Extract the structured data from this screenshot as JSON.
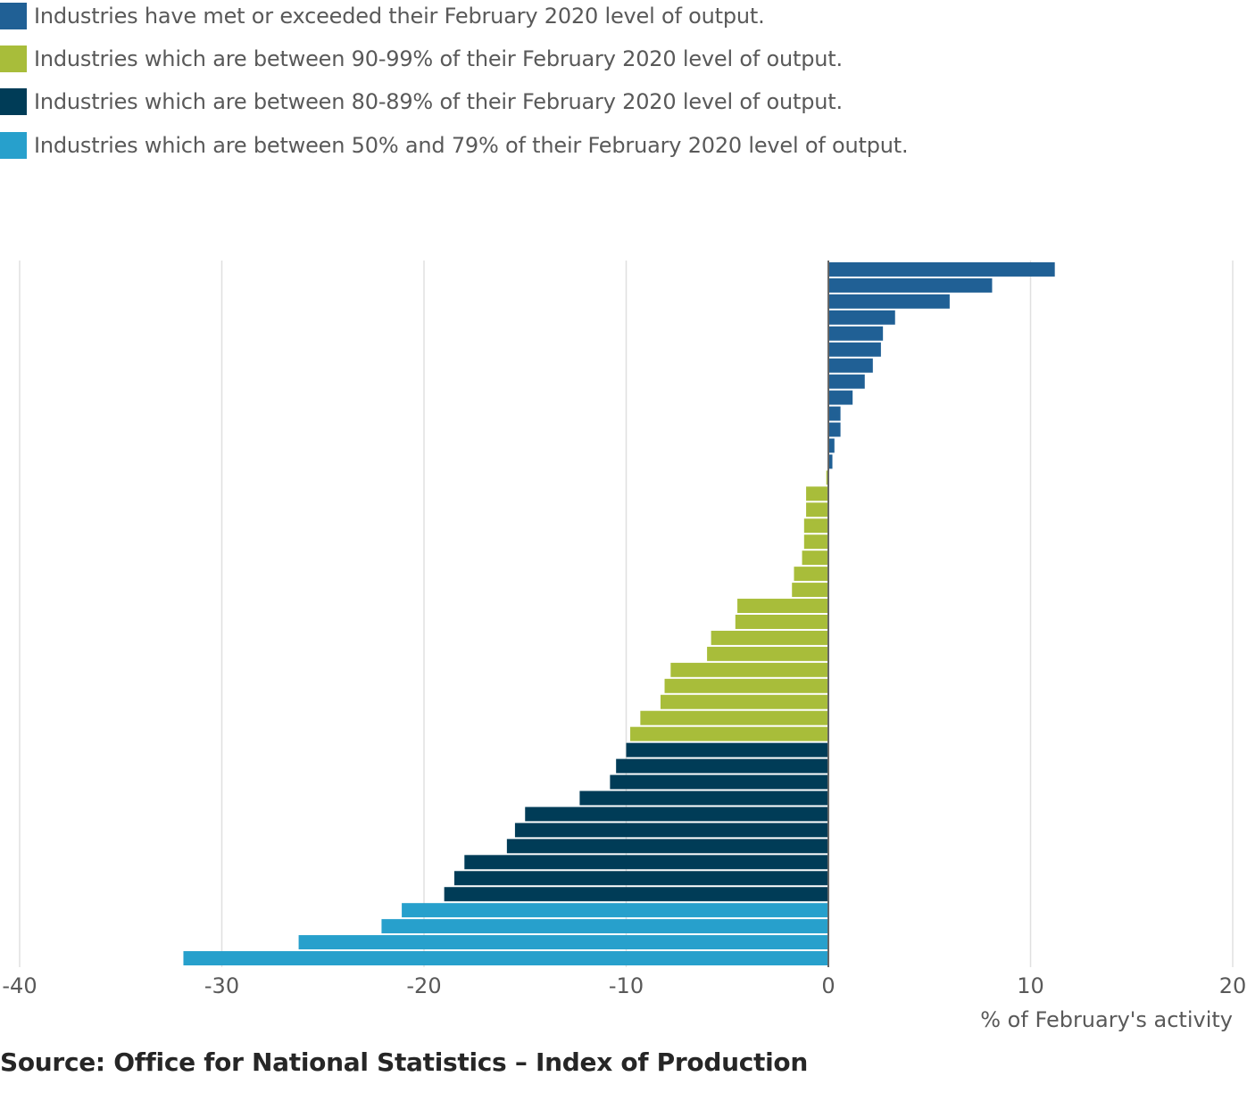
{
  "chart_data": {
    "type": "bar",
    "orientation": "horizontal",
    "xlabel": "% of February's activity",
    "xlim": [
      -40,
      20
    ],
    "x_ticks": [
      "-40",
      "-30",
      "-20",
      "-10",
      "0",
      "10",
      "20"
    ],
    "grid": "vertical",
    "legend_position": "top-left",
    "series": [
      {
        "name": "Industries have met or exceeded their February 2020 level of output.",
        "color": "#206095",
        "values": [
          11.2,
          8.1,
          6.0,
          3.3,
          2.7,
          2.6,
          2.2,
          1.8,
          1.2,
          0.6,
          0.6,
          0.3,
          0.2
        ]
      },
      {
        "name": "Industries which are between 90-99% of their February 2020 level of output.",
        "color": "#a8bd3a",
        "values": [
          -0.1,
          -1.1,
          -1.1,
          -1.2,
          -1.2,
          -1.3,
          -1.7,
          -1.8,
          -4.5,
          -4.6,
          -5.8,
          -6.0,
          -7.8,
          -8.1,
          -8.3,
          -9.3,
          -9.8
        ]
      },
      {
        "name": "Industries which are between 80-89% of their February 2020 level of output.",
        "color": "#003c57",
        "values": [
          -10.0,
          -10.5,
          -10.8,
          -12.3,
          -15.0,
          -15.5,
          -15.9,
          -18.0,
          -18.5,
          -19.0
        ]
      },
      {
        "name": "Industries which are between 50% and 79% of their February 2020 level of output.",
        "color": "#27a0cc",
        "values": [
          -21.1,
          -22.1,
          -26.2,
          -31.9
        ]
      }
    ]
  },
  "source": "Source: Office for National Statistics – Index of Production"
}
